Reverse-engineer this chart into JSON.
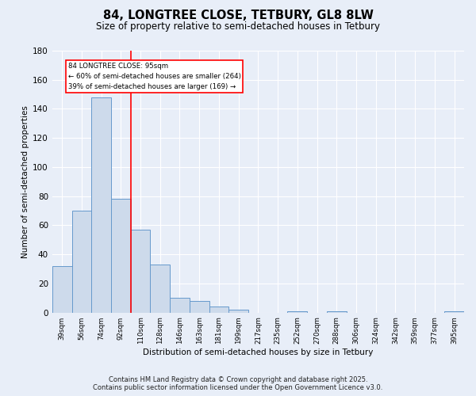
{
  "title": "84, LONGTREE CLOSE, TETBURY, GL8 8LW",
  "subtitle": "Size of property relative to semi-detached houses in Tetbury",
  "xlabel": "Distribution of semi-detached houses by size in Tetbury",
  "ylabel": "Number of semi-detached properties",
  "categories": [
    "39sqm",
    "56sqm",
    "74sqm",
    "92sqm",
    "110sqm",
    "128sqm",
    "146sqm",
    "163sqm",
    "181sqm",
    "199sqm",
    "217sqm",
    "235sqm",
    "252sqm",
    "270sqm",
    "288sqm",
    "306sqm",
    "324sqm",
    "342sqm",
    "359sqm",
    "377sqm",
    "395sqm"
  ],
  "values": [
    32,
    70,
    148,
    78,
    57,
    33,
    10,
    8,
    4,
    2,
    0,
    0,
    1,
    0,
    1,
    0,
    0,
    0,
    0,
    0,
    1
  ],
  "bar_color": "#cddaeb",
  "bar_edge_color": "#6699cc",
  "red_line_x": 3.5,
  "annotation_title": "84 LONGTREE CLOSE: 95sqm",
  "annotation_line1": "← 60% of semi-detached houses are smaller (264)",
  "annotation_line2": "39% of semi-detached houses are larger (169) →",
  "ylim": [
    0,
    180
  ],
  "yticks": [
    0,
    20,
    40,
    60,
    80,
    100,
    120,
    140,
    160,
    180
  ],
  "footer1": "Contains HM Land Registry data © Crown copyright and database right 2025.",
  "footer2": "Contains public sector information licensed under the Open Government Licence v3.0.",
  "bg_color": "#e8eef8",
  "plot_bg_color": "#e8eef8"
}
